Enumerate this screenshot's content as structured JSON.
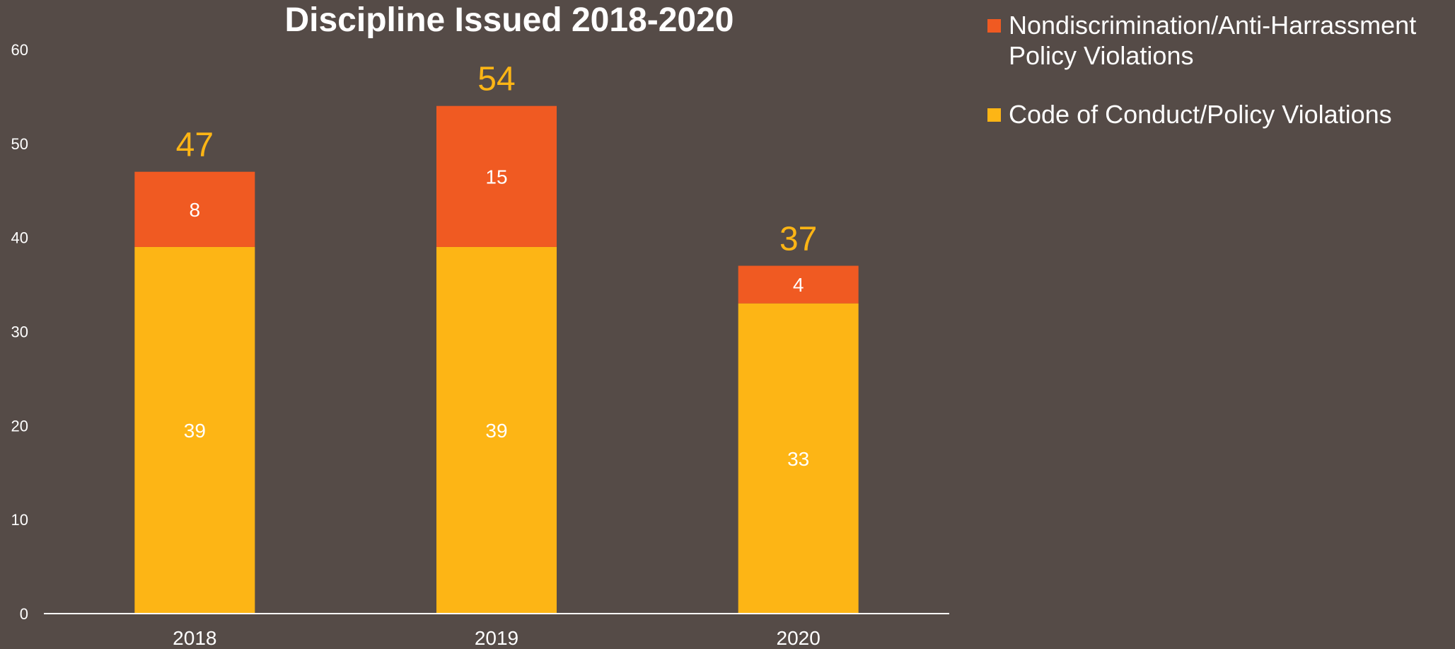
{
  "chart_data": {
    "type": "bar",
    "stacked": true,
    "title": "Discipline Issued 2018-2020",
    "categories": [
      "2018",
      "2019",
      "2020"
    ],
    "series": [
      {
        "name": "Code of Conduct/Policy Violations",
        "values": [
          39,
          39,
          33
        ],
        "color": "#fdb515"
      },
      {
        "name": "Nondiscrimination/Anti-Harrassment Policy Violations",
        "values": [
          8,
          15,
          4
        ],
        "color": "#f05a22"
      }
    ],
    "totals": [
      47,
      54,
      37
    ],
    "total_label_color": "#fdb515",
    "ylim": [
      0,
      60
    ],
    "yticks": [
      "0",
      "10",
      "20",
      "30",
      "40",
      "50",
      "60"
    ],
    "grid": false,
    "legend_position": "top-right",
    "background_color": "#554b47"
  }
}
